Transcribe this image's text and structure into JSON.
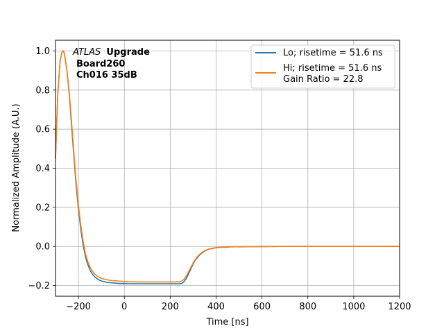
{
  "chart_data": {
    "type": "line",
    "xlabel": "Time [ns]",
    "ylabel": "Normalized Amplitude (A.U.)",
    "xlim": [
      -300,
      1200
    ],
    "ylim": [
      -0.255,
      1.055
    ],
    "xticks": [
      -200,
      0,
      200,
      400,
      600,
      800,
      1000,
      1200
    ],
    "yticks": [
      -0.2,
      0.0,
      0.2,
      0.4,
      0.6,
      0.8,
      1.0
    ],
    "xtick_labels": [
      "−200",
      "0",
      "200",
      "400",
      "600",
      "800",
      "1000",
      "1200"
    ],
    "ytick_labels": [
      "−0.2",
      "0.0",
      "0.2",
      "0.4",
      "0.6",
      "0.8",
      "1.0"
    ],
    "grid": true,
    "legend_position": "top-right",
    "annotation": {
      "line1_italic": "ATLAS",
      "line1_bold": "Upgrade",
      "line2": "Board260",
      "line3": "Ch016 35dB"
    },
    "series": [
      {
        "name": "Lo; risetime = 51.6 ns",
        "color": "#1f77b4",
        "x": [
          -300,
          -290,
          -280,
          -270,
          -265,
          -260,
          -250,
          -240,
          -230,
          -220,
          -210,
          -200,
          -190,
          -180,
          -170,
          -160,
          -150,
          -140,
          -130,
          -120,
          -110,
          -100,
          -90,
          -80,
          -70,
          -60,
          -50,
          -40,
          -30,
          -20,
          -10,
          0,
          20,
          40,
          60,
          80,
          100,
          120,
          140,
          160,
          180,
          200,
          220,
          240,
          250,
          260,
          270,
          280,
          290,
          300,
          310,
          320,
          330,
          340,
          350,
          360,
          370,
          380,
          390,
          400,
          420,
          440,
          460,
          480,
          500,
          550,
          600,
          700,
          800,
          900,
          1000,
          1100,
          1200
        ],
        "y": [
          0.45,
          0.78,
          0.95,
          1.0,
          1.0,
          0.98,
          0.9,
          0.78,
          0.62,
          0.46,
          0.31,
          0.19,
          0.09,
          0.01,
          -0.05,
          -0.09,
          -0.12,
          -0.14,
          -0.155,
          -0.165,
          -0.172,
          -0.177,
          -0.18,
          -0.183,
          -0.185,
          -0.186,
          -0.187,
          -0.188,
          -0.189,
          -0.19,
          -0.19,
          -0.19,
          -0.191,
          -0.191,
          -0.191,
          -0.191,
          -0.191,
          -0.191,
          -0.191,
          -0.191,
          -0.191,
          -0.191,
          -0.191,
          -0.191,
          -0.19,
          -0.18,
          -0.165,
          -0.14,
          -0.115,
          -0.09,
          -0.07,
          -0.055,
          -0.042,
          -0.032,
          -0.024,
          -0.018,
          -0.014,
          -0.011,
          -0.009,
          -0.007,
          -0.005,
          -0.004,
          -0.003,
          -0.002,
          -0.002,
          -0.001,
          -0.001,
          0.0,
          0.0,
          0.0,
          0.0,
          0.0,
          0.0
        ]
      },
      {
        "name": "Hi; risetime = 51.6 ns\n Gain Ratio = 22.8",
        "color": "#ff7f0e",
        "x": [
          -300,
          -290,
          -280,
          -270,
          -265,
          -260,
          -250,
          -240,
          -230,
          -220,
          -210,
          -200,
          -190,
          -180,
          -170,
          -160,
          -150,
          -140,
          -130,
          -120,
          -110,
          -100,
          -90,
          -80,
          -70,
          -60,
          -50,
          -40,
          -30,
          -20,
          -10,
          0,
          20,
          40,
          60,
          80,
          100,
          120,
          140,
          160,
          180,
          200,
          220,
          240,
          250,
          260,
          270,
          280,
          290,
          300,
          310,
          320,
          330,
          340,
          350,
          360,
          370,
          380,
          390,
          400,
          420,
          440,
          460,
          480,
          500,
          550,
          600,
          700,
          800,
          900,
          1000,
          1100,
          1200
        ],
        "y": [
          0.45,
          0.78,
          0.95,
          1.0,
          1.0,
          0.98,
          0.9,
          0.79,
          0.64,
          0.48,
          0.33,
          0.21,
          0.11,
          0.03,
          -0.035,
          -0.075,
          -0.105,
          -0.125,
          -0.14,
          -0.15,
          -0.158,
          -0.163,
          -0.167,
          -0.17,
          -0.172,
          -0.174,
          -0.175,
          -0.176,
          -0.177,
          -0.178,
          -0.179,
          -0.18,
          -0.181,
          -0.181,
          -0.182,
          -0.182,
          -0.182,
          -0.182,
          -0.182,
          -0.182,
          -0.182,
          -0.182,
          -0.182,
          -0.181,
          -0.178,
          -0.168,
          -0.152,
          -0.13,
          -0.107,
          -0.085,
          -0.066,
          -0.051,
          -0.039,
          -0.029,
          -0.022,
          -0.017,
          -0.013,
          -0.01,
          -0.008,
          -0.006,
          -0.004,
          -0.003,
          -0.002,
          -0.002,
          -0.001,
          -0.001,
          0.0,
          0.0,
          0.0,
          0.0,
          0.0,
          0.0,
          0.0
        ]
      }
    ]
  }
}
